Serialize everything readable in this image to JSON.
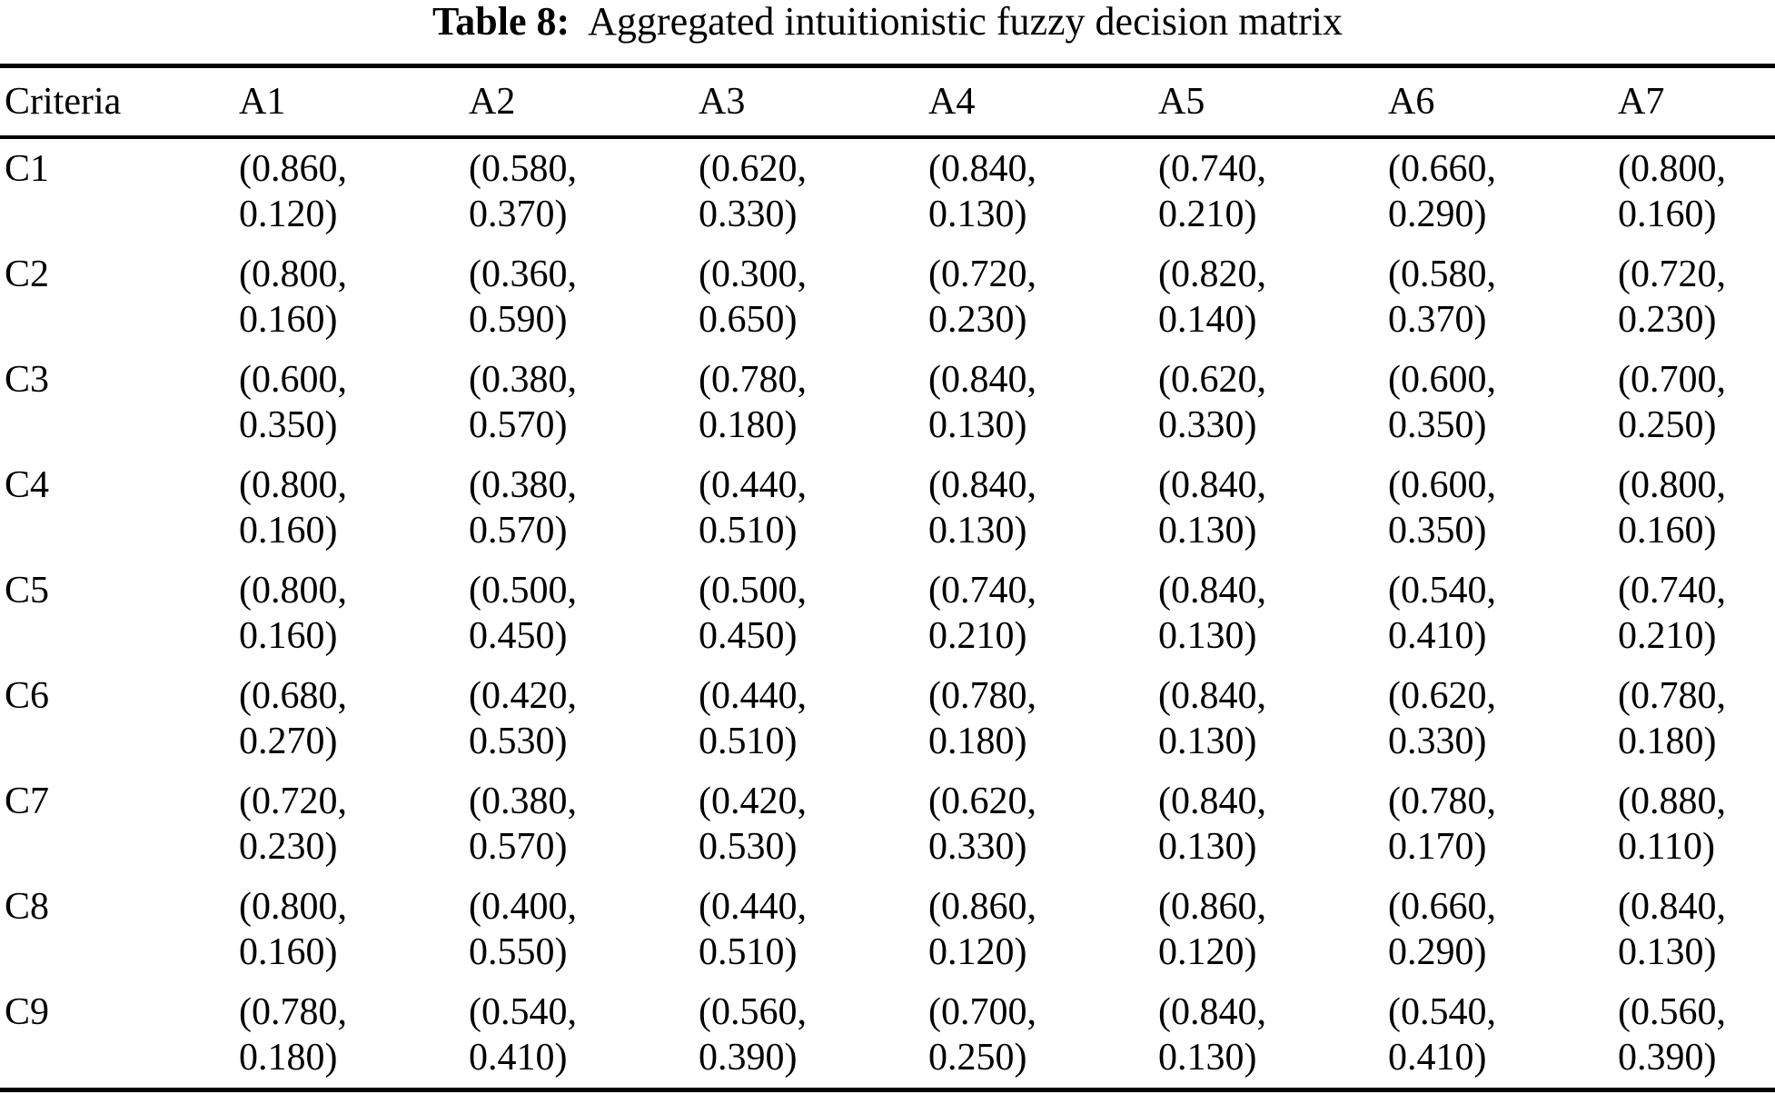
{
  "title": {
    "label": "Table 8:",
    "text": "Aggregated intuitionistic fuzzy decision matrix"
  },
  "colors": {
    "text": "#000000",
    "background": "#ffffff",
    "rule": "#000000"
  },
  "table": {
    "header": [
      "Criteria",
      "A1",
      "A2",
      "A3",
      "A4",
      "A5",
      "A6",
      "A7"
    ],
    "rows": [
      {
        "criterion": "C1",
        "cells": [
          {
            "line1": "(0.860,",
            "line2": "0.120)"
          },
          {
            "line1": "(0.580,",
            "line2": "0.370)"
          },
          {
            "line1": "(0.620,",
            "line2": "0.330)"
          },
          {
            "line1": "(0.840,",
            "line2": "0.130)"
          },
          {
            "line1": "(0.740,",
            "line2": "0.210)"
          },
          {
            "line1": "(0.660,",
            "line2": "0.290)"
          },
          {
            "line1": "(0.800,",
            "line2": "0.160)"
          }
        ]
      },
      {
        "criterion": "C2",
        "cells": [
          {
            "line1": "(0.800,",
            "line2": "0.160)"
          },
          {
            "line1": "(0.360,",
            "line2": "0.590)"
          },
          {
            "line1": "(0.300,",
            "line2": "0.650)"
          },
          {
            "line1": "(0.720,",
            "line2": "0.230)"
          },
          {
            "line1": "(0.820,",
            "line2": "0.140)"
          },
          {
            "line1": "(0.580,",
            "line2": "0.370)"
          },
          {
            "line1": "(0.720,",
            "line2": "0.230)"
          }
        ]
      },
      {
        "criterion": "C3",
        "cells": [
          {
            "line1": "(0.600,",
            "line2": "0.350)"
          },
          {
            "line1": "(0.380,",
            "line2": "0.570)"
          },
          {
            "line1": "(0.780,",
            "line2": "0.180)"
          },
          {
            "line1": "(0.840,",
            "line2": "0.130)"
          },
          {
            "line1": "(0.620,",
            "line2": "0.330)"
          },
          {
            "line1": "(0.600,",
            "line2": "0.350)"
          },
          {
            "line1": "(0.700,",
            "line2": "0.250)"
          }
        ]
      },
      {
        "criterion": "C4",
        "cells": [
          {
            "line1": "(0.800,",
            "line2": "0.160)"
          },
          {
            "line1": "(0.380,",
            "line2": "0.570)"
          },
          {
            "line1": "(0.440,",
            "line2": "0.510)"
          },
          {
            "line1": "(0.840,",
            "line2": "0.130)"
          },
          {
            "line1": "(0.840,",
            "line2": "0.130)"
          },
          {
            "line1": "(0.600,",
            "line2": "0.350)"
          },
          {
            "line1": "(0.800,",
            "line2": "0.160)"
          }
        ]
      },
      {
        "criterion": "C5",
        "cells": [
          {
            "line1": "(0.800,",
            "line2": "0.160)"
          },
          {
            "line1": "(0.500,",
            "line2": "0.450)"
          },
          {
            "line1": "(0.500,",
            "line2": "0.450)"
          },
          {
            "line1": "(0.740,",
            "line2": "0.210)"
          },
          {
            "line1": "(0.840,",
            "line2": "0.130)"
          },
          {
            "line1": "(0.540,",
            "line2": "0.410)"
          },
          {
            "line1": "(0.740,",
            "line2": "0.210)"
          }
        ]
      },
      {
        "criterion": "C6",
        "cells": [
          {
            "line1": "(0.680,",
            "line2": "0.270)"
          },
          {
            "line1": "(0.420,",
            "line2": "0.530)"
          },
          {
            "line1": "(0.440,",
            "line2": "0.510)"
          },
          {
            "line1": "(0.780,",
            "line2": "0.180)"
          },
          {
            "line1": "(0.840,",
            "line2": "0.130)"
          },
          {
            "line1": "(0.620,",
            "line2": "0.330)"
          },
          {
            "line1": "(0.780,",
            "line2": "0.180)"
          }
        ]
      },
      {
        "criterion": "C7",
        "cells": [
          {
            "line1": "(0.720,",
            "line2": "0.230)"
          },
          {
            "line1": "(0.380,",
            "line2": "0.570)"
          },
          {
            "line1": "(0.420,",
            "line2": "0.530)"
          },
          {
            "line1": "(0.620,",
            "line2": "0.330)"
          },
          {
            "line1": "(0.840,",
            "line2": "0.130)"
          },
          {
            "line1": "(0.780,",
            "line2": "0.170)"
          },
          {
            "line1": "(0.880,",
            "line2": "0.110)"
          }
        ]
      },
      {
        "criterion": "C8",
        "cells": [
          {
            "line1": "(0.800,",
            "line2": "0.160)"
          },
          {
            "line1": "(0.400,",
            "line2": "0.550)"
          },
          {
            "line1": "(0.440,",
            "line2": "0.510)"
          },
          {
            "line1": "(0.860,",
            "line2": "0.120)"
          },
          {
            "line1": "(0.860,",
            "line2": "0.120)"
          },
          {
            "line1": "(0.660,",
            "line2": "0.290)"
          },
          {
            "line1": "(0.840,",
            "line2": "0.130)"
          }
        ]
      },
      {
        "criterion": "C9",
        "cells": [
          {
            "line1": "(0.780,",
            "line2": "0.180)"
          },
          {
            "line1": "(0.540,",
            "line2": "0.410)"
          },
          {
            "line1": "(0.560,",
            "line2": "0.390)"
          },
          {
            "line1": "(0.700,",
            "line2": "0.250)"
          },
          {
            "line1": "(0.840,",
            "line2": "0.130)"
          },
          {
            "line1": "(0.540,",
            "line2": "0.410)"
          },
          {
            "line1": "(0.560,",
            "line2": "0.390)"
          }
        ]
      }
    ]
  }
}
